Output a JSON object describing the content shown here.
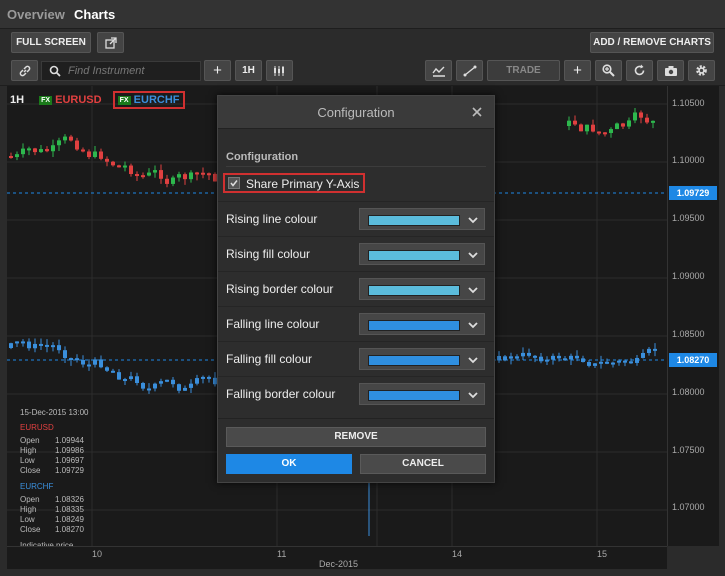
{
  "tabs": [
    {
      "label": "Overview"
    },
    {
      "label": "Charts"
    }
  ],
  "toolbar1": {
    "full_screen": "FULL SCREEN",
    "popout_icon": "external-link-icon",
    "add_remove": "ADD / REMOVE CHARTS"
  },
  "toolbar2": {
    "link_icon": "link-icon",
    "search_placeholder": "Find Instrument",
    "add_icon": "plus-icon",
    "interval": "1H",
    "candle_icon": "candlestick-icon",
    "indicator_icon": "indicator-icon",
    "line_icon": "trendline-icon",
    "trade": "TRADE",
    "crosshair_icon": "crosshair-icon",
    "zoom_icon": "zoom-icon",
    "refresh_icon": "refresh-icon",
    "camera_icon": "camera-icon",
    "settings_icon": "gear-icon"
  },
  "legend": {
    "interval": "1H",
    "fx": "FX",
    "series1": "EURUSD",
    "series2": "EURCHF"
  },
  "colors": {
    "rising": "#5bbcdc",
    "falling": "#2f8fe0",
    "eurusd_up": "#2db84d",
    "eurusd_down": "#e04040",
    "eurchf": "#3a8fdc",
    "accent": "#1e88e5"
  },
  "info": {
    "date": "15-Dec-2015 13:00",
    "eurusd": {
      "name": "EURUSD",
      "open": "1.09944",
      "high": "1.09986",
      "low": "1.09697",
      "close": "1.09729"
    },
    "eurchf": {
      "name": "EURCHF",
      "open": "1.08326",
      "high": "1.08335",
      "low": "1.08249",
      "close": "1.08270"
    },
    "labels": {
      "open": "Open",
      "high": "High",
      "low": "Low",
      "close": "Close"
    },
    "indicative": "Indicative price"
  },
  "yaxis": {
    "labels": [
      "1.10500",
      "1.10000",
      "1.09500",
      "1.09000",
      "1.08500",
      "1.08000",
      "1.07500",
      "1.07000"
    ],
    "price_tag_1": "1.09729",
    "price_tag_2": "1.08270"
  },
  "xaxis": {
    "ticks": [
      "10",
      "11",
      "14",
      "15"
    ],
    "month": "Dec-2015"
  },
  "modal": {
    "title": "Configuration",
    "section": "Configuration",
    "share_label": "Share Primary Y-Axis",
    "share_checked": true,
    "rows": [
      {
        "label": "Rising line colour",
        "color": "#5bbcdc"
      },
      {
        "label": "Rising fill colour",
        "color": "#5bbcdc"
      },
      {
        "label": "Rising border colour",
        "color": "#5bbcdc"
      },
      {
        "label": "Falling line colour",
        "color": "#2f8fe0"
      },
      {
        "label": "Falling fill colour",
        "color": "#2f8fe0"
      },
      {
        "label": "Falling border colour",
        "color": "#2f8fe0"
      }
    ],
    "remove": "REMOVE",
    "ok": "OK",
    "cancel": "CANCEL"
  }
}
